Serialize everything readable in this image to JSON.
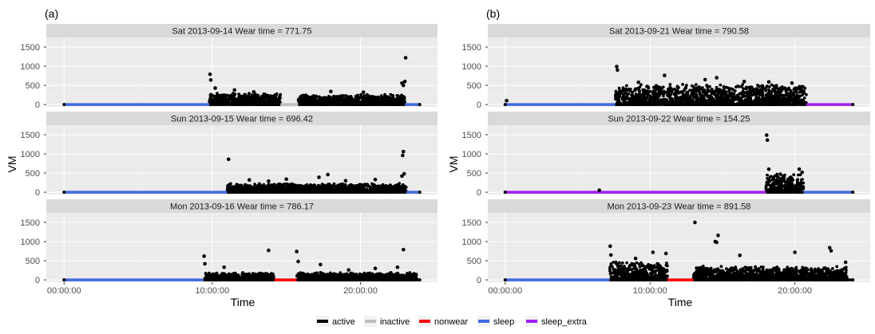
{
  "figure": {
    "panel_a_tag": "(a)",
    "panel_b_tag": "(b)"
  },
  "chart_data": [
    {
      "type": "scatter",
      "panel": "(a)",
      "xlabel": "Time",
      "ylabel": "VM",
      "x_ticks": [
        "00:00:00",
        "10:00:00",
        "20:00:00"
      ],
      "y_ticks": [
        0,
        500,
        1000,
        1500
      ],
      "ylim": [
        -60,
        1750
      ],
      "xlim_hours": [
        -1.2,
        25.2
      ],
      "grid": true,
      "facets": [
        {
          "strip": "Sat 2013-09-14    Wear time = 771.75",
          "segments": [
            {
              "status": "sleep",
              "start": 0,
              "end": 9.8
            },
            {
              "status": "active",
              "start": 9.8,
              "end": 14.6
            },
            {
              "status": "inactive",
              "start": 14.6,
              "end": 15.8
            },
            {
              "status": "active",
              "start": 15.8,
              "end": 23.0
            },
            {
              "status": "sleep",
              "start": 23.0,
              "end": 24.0
            }
          ],
          "activity": [
            {
              "start": 9.8,
              "end": 14.6,
              "base": 150,
              "vary": 120
            },
            {
              "start": 15.8,
              "end": 23.0,
              "base": 130,
              "vary": 120
            }
          ],
          "peaks": [
            [
              9.85,
              790
            ],
            [
              9.9,
              640
            ],
            [
              10.2,
              430
            ],
            [
              11.5,
              380
            ],
            [
              12.8,
              330
            ],
            [
              18.0,
              340
            ],
            [
              20.2,
              320
            ],
            [
              22.8,
              560
            ],
            [
              23.0,
              600
            ],
            [
              23.05,
              1220
            ],
            [
              22.9,
              500
            ]
          ]
        },
        {
          "strip": "Sun 2013-09-15    Wear time = 696.42",
          "segments": [
            {
              "status": "sleep",
              "start": 0,
              "end": 11.0
            },
            {
              "status": "active",
              "start": 11.0,
              "end": 23.1
            },
            {
              "status": "sleep",
              "start": 23.1,
              "end": 24.0
            }
          ],
          "activity": [
            {
              "start": 11.0,
              "end": 23.1,
              "base": 110,
              "vary": 160
            }
          ],
          "peaks": [
            [
              11.1,
              860
            ],
            [
              12.5,
              320
            ],
            [
              13.8,
              290
            ],
            [
              15.0,
              340
            ],
            [
              17.2,
              390
            ],
            [
              17.8,
              460
            ],
            [
              19.0,
              300
            ],
            [
              21.0,
              330
            ],
            [
              22.8,
              420
            ],
            [
              22.9,
              1060
            ],
            [
              22.85,
              960
            ],
            [
              22.95,
              480
            ]
          ]
        },
        {
          "strip": "Mon 2013-09-16    Wear time = 786.17",
          "segments": [
            {
              "status": "sleep",
              "start": 0,
              "end": 9.4
            },
            {
              "status": "active",
              "start": 9.4,
              "end": 14.2
            },
            {
              "status": "nonwear",
              "start": 14.2,
              "end": 15.7
            },
            {
              "status": "active",
              "start": 15.7,
              "end": 24.0
            }
          ],
          "activity": [
            {
              "start": 9.5,
              "end": 14.2,
              "base": 90,
              "vary": 130
            },
            {
              "start": 15.7,
              "end": 23.8,
              "base": 90,
              "vary": 130
            }
          ],
          "peaks": [
            [
              9.45,
              620
            ],
            [
              9.5,
              420
            ],
            [
              10.8,
              330
            ],
            [
              13.8,
              770
            ],
            [
              15.7,
              740
            ],
            [
              15.8,
              480
            ],
            [
              17.3,
              400
            ],
            [
              19.2,
              260
            ],
            [
              21.0,
              300
            ],
            [
              22.9,
              790
            ],
            [
              22.5,
              330
            ]
          ]
        }
      ]
    },
    {
      "type": "scatter",
      "panel": "(b)",
      "xlabel": "Time",
      "ylabel": "VM",
      "x_ticks": [
        "00:00:00",
        "10:00:00",
        "20:00:00"
      ],
      "y_ticks": [
        0,
        500,
        1000,
        1500
      ],
      "ylim": [
        -60,
        1750
      ],
      "xlim_hours": [
        -1.2,
        25.2
      ],
      "grid": true,
      "facets": [
        {
          "strip": "Sat 2013-09-21    Wear time = 790.58",
          "segments": [
            {
              "status": "sleep",
              "start": 0,
              "end": 7.6
            },
            {
              "status": "active",
              "start": 7.6,
              "end": 20.8
            },
            {
              "status": "sleep_extra",
              "start": 20.8,
              "end": 24.0
            }
          ],
          "activity": [
            {
              "start": 7.6,
              "end": 20.8,
              "base": 260,
              "vary": 280
            }
          ],
          "peaks": [
            [
              0.1,
              100
            ],
            [
              7.7,
              990
            ],
            [
              7.75,
              900
            ],
            [
              9.2,
              580
            ],
            [
              11.0,
              760
            ],
            [
              13.8,
              650
            ],
            [
              14.6,
              700
            ],
            [
              16.5,
              600
            ],
            [
              18.2,
              590
            ],
            [
              19.8,
              560
            ]
          ]
        },
        {
          "strip": "Sun 2013-09-22    Wear time = 154.25",
          "segments": [
            {
              "status": "sleep_extra",
              "start": 0,
              "end": 18.0
            },
            {
              "status": "active",
              "start": 18.0,
              "end": 20.6
            },
            {
              "status": "sleep",
              "start": 20.6,
              "end": 24.0
            }
          ],
          "activity": [
            {
              "start": 18.0,
              "end": 20.6,
              "base": 250,
              "vary": 200
            }
          ],
          "peaks": [
            [
              6.5,
              50
            ],
            [
              18.05,
              1490
            ],
            [
              18.1,
              1360
            ],
            [
              18.2,
              600
            ],
            [
              19.0,
              470
            ],
            [
              20.3,
              600
            ],
            [
              20.5,
              520
            ]
          ]
        },
        {
          "strip": "Mon 2013-09-23    Wear time = 891.58",
          "segments": [
            {
              "status": "sleep",
              "start": 0,
              "end": 7.2
            },
            {
              "status": "active",
              "start": 7.2,
              "end": 11.2
            },
            {
              "status": "nonwear",
              "start": 11.2,
              "end": 13.0
            },
            {
              "status": "active",
              "start": 13.0,
              "end": 24.0
            }
          ],
          "activity": [
            {
              "start": 7.2,
              "end": 11.2,
              "base": 230,
              "vary": 260
            },
            {
              "start": 13.0,
              "end": 23.6,
              "base": 170,
              "vary": 220
            }
          ],
          "peaks": [
            [
              7.25,
              880
            ],
            [
              7.3,
              650
            ],
            [
              9.0,
              560
            ],
            [
              10.2,
              720
            ],
            [
              11.1,
              690
            ],
            [
              13.1,
              1500
            ],
            [
              14.7,
              1160
            ],
            [
              14.6,
              980
            ],
            [
              14.5,
              1000
            ],
            [
              16.2,
              640
            ],
            [
              20.0,
              720
            ],
            [
              22.4,
              840
            ],
            [
              22.5,
              760
            ],
            [
              23.5,
              460
            ]
          ]
        }
      ]
    }
  ],
  "legend": {
    "position": "bottom",
    "items": [
      {
        "label": "active",
        "color": "#000000"
      },
      {
        "label": "inactive",
        "color": "#BEBEBE"
      },
      {
        "label": "nonwear",
        "color": "#FF0000"
      },
      {
        "label": "sleep",
        "color": "#4169E1"
      },
      {
        "label": "sleep_extra",
        "color": "#A020F0"
      }
    ]
  },
  "status_colors": {
    "active": "#000000",
    "inactive": "#BEBEBE",
    "nonwear": "#FF0000",
    "sleep": "#4169E1",
    "sleep_extra": "#A020F0"
  },
  "theme": {
    "panel_background": "#EBEBEB",
    "strip_background": "#D9D9D9",
    "grid_major": "#FFFFFF"
  }
}
